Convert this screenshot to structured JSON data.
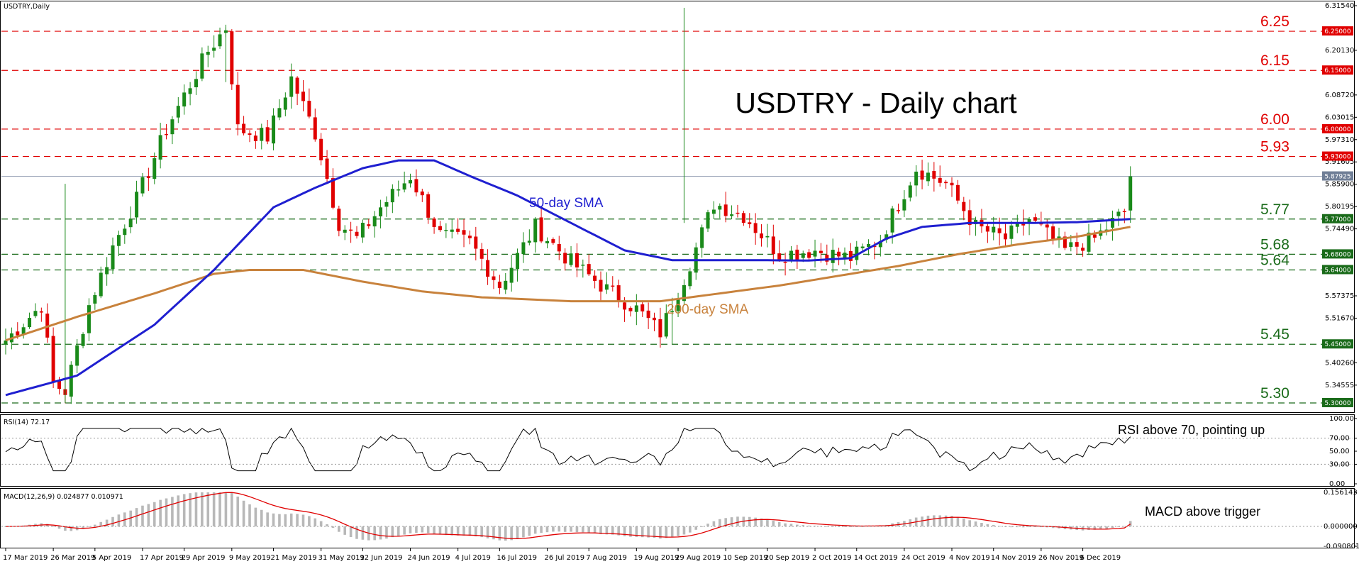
{
  "chart_data": {
    "type": "candlestick",
    "symbol_label": "USDTRY,Daily",
    "title": "USDTRY - Daily chart",
    "ylim": [
      5.28,
      6.3154
    ],
    "price_axis_ticks": [
      "6.31540",
      "6.25000",
      "6.20130",
      "6.15000",
      "6.08720",
      "6.03015",
      "6.00000",
      "5.97310",
      "5.93000",
      "5.91605",
      "5.87925",
      "5.85900",
      "5.80195",
      "5.77000",
      "5.74490",
      "5.68000",
      "5.64000",
      "5.57375",
      "5.51670",
      "5.45000",
      "5.40260",
      "5.34555",
      "5.30000"
    ],
    "current_price": 5.87925,
    "levels": [
      {
        "value": 6.25,
        "label": "6.25",
        "box": "6.25000",
        "color": "#e00000"
      },
      {
        "value": 6.15,
        "label": "6.15",
        "box": "6.15000",
        "color": "#e00000"
      },
      {
        "value": 6.0,
        "label": "6.00",
        "box": "6.00000",
        "color": "#e00000"
      },
      {
        "value": 5.93,
        "label": "5.93",
        "box": "5.93000",
        "color": "#e00000"
      },
      {
        "value": 5.77,
        "label": "5.77",
        "box": "5.77000",
        "color": "#1a6b1a"
      },
      {
        "value": 5.68,
        "label": "5.68",
        "box": "5.68000",
        "color": "#1a6b1a"
      },
      {
        "value": 5.64,
        "label": "5.64",
        "box": "5.64000",
        "color": "#1a6b1a"
      },
      {
        "value": 5.45,
        "label": "5.45",
        "box": "5.45000",
        "color": "#1a6b1a"
      },
      {
        "value": 5.3,
        "label": "5.30",
        "box": "5.30000",
        "color": "#1a6b1a"
      }
    ],
    "x_labels": [
      "17 Mar 2019",
      "26 Mar 2019",
      "5 Apr 2019",
      "17 Apr 2019",
      "29 Apr 2019",
      "9 May 2019",
      "21 May 2019",
      "31 May 2019",
      "12 Jun 2019",
      "24 Jun 2019",
      "4 Jul 2019",
      "16 Jul 2019",
      "26 Jul 2019",
      "7 Aug 2019",
      "19 Aug 2019",
      "29 Aug 2019",
      "10 Sep 2019",
      "20 Sep 2019",
      "2 Oct 2019",
      "14 Oct 2019",
      "24 Oct 2019",
      "4 Nov 2019",
      "14 Nov 2019",
      "26 Nov 2019",
      "6 Dec 2019"
    ],
    "bar_count": 190,
    "key_points": [
      [
        0,
        5.46
      ],
      [
        6,
        5.55
      ],
      [
        8,
        5.35
      ],
      [
        10,
        5.33
      ],
      [
        14,
        5.55
      ],
      [
        18,
        5.7
      ],
      [
        22,
        5.82
      ],
      [
        27,
        6.0
      ],
      [
        34,
        6.2
      ],
      [
        37,
        6.26
      ],
      [
        39,
        6.0
      ],
      [
        44,
        5.98
      ],
      [
        48,
        6.13
      ],
      [
        52,
        5.99
      ],
      [
        56,
        5.76
      ],
      [
        59,
        5.72
      ],
      [
        63,
        5.8
      ],
      [
        68,
        5.88
      ],
      [
        73,
        5.73
      ],
      [
        78,
        5.71
      ],
      [
        83,
        5.6
      ],
      [
        89,
        5.75
      ],
      [
        95,
        5.66
      ],
      [
        101,
        5.59
      ],
      [
        106,
        5.54
      ],
      [
        110,
        5.48
      ],
      [
        114,
        5.62
      ],
      [
        119,
        5.81
      ],
      [
        124,
        5.78
      ],
      [
        130,
        5.68
      ],
      [
        136,
        5.69
      ],
      [
        142,
        5.67
      ],
      [
        147,
        5.72
      ],
      [
        153,
        5.9
      ],
      [
        158,
        5.86
      ],
      [
        163,
        5.75
      ],
      [
        168,
        5.72
      ],
      [
        172,
        5.77
      ],
      [
        178,
        5.69
      ],
      [
        183,
        5.72
      ],
      [
        188,
        5.79
      ],
      [
        189,
        5.879
      ]
    ],
    "sma50_points": [
      [
        0,
        5.32
      ],
      [
        12,
        5.37
      ],
      [
        25,
        5.5
      ],
      [
        35,
        5.64
      ],
      [
        45,
        5.8
      ],
      [
        52,
        5.85
      ],
      [
        60,
        5.9
      ],
      [
        66,
        5.92
      ],
      [
        72,
        5.92
      ],
      [
        78,
        5.88
      ],
      [
        86,
        5.83
      ],
      [
        95,
        5.76
      ],
      [
        104,
        5.69
      ],
      [
        112,
        5.665
      ],
      [
        125,
        5.665
      ],
      [
        135,
        5.664
      ],
      [
        142,
        5.67
      ],
      [
        148,
        5.72
      ],
      [
        154,
        5.75
      ],
      [
        162,
        5.76
      ],
      [
        172,
        5.76
      ],
      [
        180,
        5.762
      ],
      [
        189,
        5.77
      ]
    ],
    "sma200_points": [
      [
        0,
        5.46
      ],
      [
        12,
        5.52
      ],
      [
        25,
        5.58
      ],
      [
        35,
        5.63
      ],
      [
        41,
        5.64
      ],
      [
        50,
        5.64
      ],
      [
        60,
        5.61
      ],
      [
        70,
        5.585
      ],
      [
        80,
        5.57
      ],
      [
        95,
        5.56
      ],
      [
        110,
        5.56
      ],
      [
        120,
        5.58
      ],
      [
        130,
        5.6
      ],
      [
        140,
        5.625
      ],
      [
        150,
        5.65
      ],
      [
        160,
        5.68
      ],
      [
        170,
        5.705
      ],
      [
        180,
        5.725
      ],
      [
        189,
        5.75
      ]
    ],
    "sma50_label": "50-day SMA",
    "sma200_label": "200-day SMA",
    "rsi": {
      "header": "RSI(14) 72.17",
      "value": 72.17,
      "ylim": [
        0,
        100
      ],
      "ticks": [
        "100.00",
        "70.00",
        "50.00",
        "30.00",
        "0.00"
      ],
      "annotation": "RSI above 70, pointing up"
    },
    "macd": {
      "header": "MACD(12,26,9) 0.024877 0.010971",
      "main": 0.024877,
      "signal": 0.010971,
      "ylim": [
        -0.090801,
        0.156143
      ],
      "ticks": [
        "0.156143",
        "0.000000",
        "-0.090801"
      ],
      "annotation": "MACD above trigger"
    },
    "colors": {
      "bull": "#1a8a1a",
      "bear": "#e00000",
      "sma50": "#1f1fd0",
      "sma200": "#c8823c",
      "macd_hist": "#b8b8b8",
      "macd_signal": "#e00000"
    }
  }
}
